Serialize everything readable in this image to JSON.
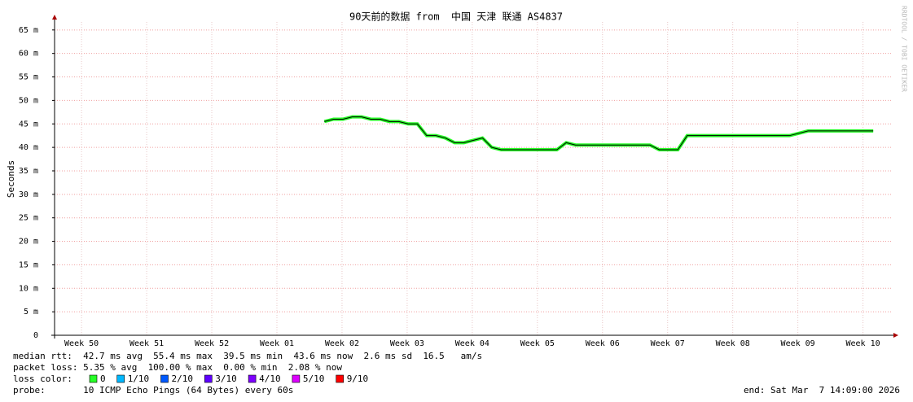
{
  "chart_data": {
    "type": "line",
    "title": "90天前的数据 from  中国 天津 联通 AS4837",
    "ylabel": "Seconds",
    "side_text": "RRDTOOL / TOBI OETIKER",
    "xlim": [
      0,
      90
    ],
    "ylim": [
      0,
      0.0667
    ],
    "yticks": [
      0,
      {
        "value": 0.005,
        "label": "5 m"
      },
      {
        "value": 0.01,
        "label": "10 m"
      },
      {
        "value": 0.015,
        "label": "15 m"
      },
      {
        "value": 0.02,
        "label": "20 m"
      },
      {
        "value": 0.025,
        "label": "25 m"
      },
      {
        "value": 0.03,
        "label": "30 m"
      },
      {
        "value": 0.035,
        "label": "35 m"
      },
      {
        "value": 0.04,
        "label": "40 m"
      },
      {
        "value": 0.045,
        "label": "45 m"
      },
      {
        "value": 0.05,
        "label": "50 m"
      },
      {
        "value": 0.055,
        "label": "55 m"
      },
      {
        "value": 0.06,
        "label": "60 m"
      },
      {
        "value": 0.065,
        "label": "65 m"
      }
    ],
    "xticks": [
      {
        "value": 2.9,
        "label": "Week 50"
      },
      {
        "value": 9.9,
        "label": "Week 51"
      },
      {
        "value": 16.9,
        "label": "Week 52"
      },
      {
        "value": 23.9,
        "label": "Week 01"
      },
      {
        "value": 30.9,
        "label": "Week 02"
      },
      {
        "value": 37.9,
        "label": "Week 03"
      },
      {
        "value": 44.9,
        "label": "Week 04"
      },
      {
        "value": 51.9,
        "label": "Week 05"
      },
      {
        "value": 58.9,
        "label": "Week 06"
      },
      {
        "value": 65.9,
        "label": "Week 07"
      },
      {
        "value": 72.9,
        "label": "Week 08"
      },
      {
        "value": 79.9,
        "label": "Week 09"
      },
      {
        "value": 86.9,
        "label": "Week 10"
      }
    ],
    "grid": true,
    "line_color": "#000000",
    "band_color": "#26ff26",
    "series": [
      {
        "color": "#000000",
        "values": [
          null,
          null,
          null,
          null,
          null,
          null,
          null,
          null,
          null,
          null,
          null,
          null,
          null,
          null,
          null,
          null,
          null,
          null,
          null,
          null,
          null,
          null,
          null,
          null,
          null,
          null,
          null,
          null,
          null,
          0.0455,
          0.046,
          0.046,
          0.0465,
          0.0465,
          0.046,
          0.046,
          0.0455,
          0.0455,
          0.045,
          0.045,
          0.0425,
          0.0425,
          0.042,
          0.041,
          0.041,
          0.0415,
          0.042,
          0.04,
          0.0395,
          0.0395,
          0.0395,
          0.0395,
          0.0395,
          0.0395,
          0.0395,
          0.041,
          0.0405,
          0.0405,
          0.0405,
          0.0405,
          0.0405,
          0.0405,
          0.0405,
          0.0405,
          0.0405,
          0.0395,
          0.0395,
          0.0395,
          0.0425,
          0.0425,
          0.0425,
          0.0425,
          0.0425,
          0.0425,
          0.0425,
          0.0425,
          0.0425,
          0.0425,
          0.0425,
          0.0425,
          0.043,
          0.0435,
          0.0435,
          0.0435,
          0.0435,
          0.0435,
          0.0435,
          0.0435,
          0.0435
        ]
      }
    ],
    "stats": [
      "median rtt:  42.7 ms avg  55.4 ms max  39.5 ms min  43.6 ms now  2.6 ms sd  16.5   am/s",
      "packet loss: 5.35 % avg  100.00 % max  0.00 % min  2.08 % now"
    ],
    "loss_title": "loss color:",
    "loss_colors": [
      {
        "label": "0",
        "color": "#26ff26"
      },
      {
        "label": "1/10",
        "color": "#00b8ff"
      },
      {
        "label": "2/10",
        "color": "#0059ff"
      },
      {
        "label": "3/10",
        "color": "#5e00ff"
      },
      {
        "label": "4/10",
        "color": "#7e00ff"
      },
      {
        "label": "5/10",
        "color": "#dd00ff"
      },
      {
        "label": "9/10",
        "color": "#ff0000"
      }
    ],
    "probe": "probe:       10 ICMP Echo Pings (64 Bytes) every 60s",
    "end": "end: Sat Mar  7 14:09:00 2026"
  }
}
